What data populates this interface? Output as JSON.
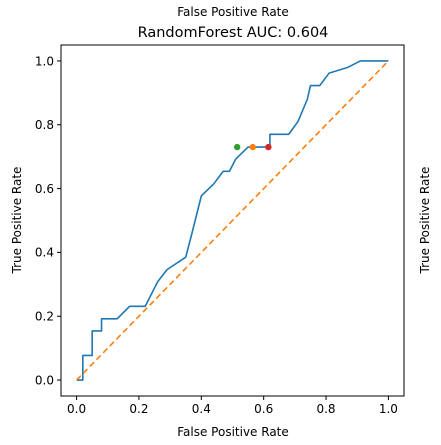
{
  "chart_data": {
    "type": "line",
    "title": "RandomForest AUC: 0.604",
    "top_xlabel": "False Positive Rate",
    "xlabel": "False Positive Rate",
    "ylabel": "True Positive Rate",
    "right_ylabel": "True Positive Rate",
    "xlim": [
      -0.05,
      1.05
    ],
    "ylim": [
      -0.05,
      1.05
    ],
    "x_ticks": [
      0.0,
      0.2,
      0.4,
      0.6,
      0.8,
      1.0
    ],
    "y_ticks": [
      0.0,
      0.2,
      0.4,
      0.6,
      0.8,
      1.0
    ],
    "tick_labels": [
      "0.0",
      "0.2",
      "0.4",
      "0.6",
      "0.8",
      "1.0"
    ],
    "grid": false,
    "series": [
      {
        "color": "#1f77b4",
        "style": "solid",
        "x": [
          0.0,
          0.02,
          0.02,
          0.05,
          0.05,
          0.08,
          0.08,
          0.13,
          0.17,
          0.22,
          0.26,
          0.29,
          0.35,
          0.37,
          0.4,
          0.44,
          0.47,
          0.49,
          0.51,
          0.55,
          0.62,
          0.62,
          0.68,
          0.71,
          0.74,
          0.75,
          0.78,
          0.81,
          0.87,
          0.91,
          0.94,
          1.0
        ],
        "y": [
          0.0,
          0.0,
          0.077,
          0.077,
          0.154,
          0.154,
          0.192,
          0.192,
          0.231,
          0.231,
          0.308,
          0.346,
          0.385,
          0.46,
          0.577,
          0.615,
          0.654,
          0.654,
          0.692,
          0.73,
          0.73,
          0.77,
          0.77,
          0.81,
          0.88,
          0.923,
          0.923,
          0.962,
          0.98,
          1.0,
          1.0,
          1.0
        ]
      },
      {
        "color": "#ff7f0e",
        "style": "dashed",
        "x": [
          0.0,
          1.0
        ],
        "y": [
          0.0,
          1.0
        ]
      }
    ],
    "points": [
      {
        "x": 0.515,
        "y": 0.73,
        "color": "#2ca02c"
      },
      {
        "x": 0.565,
        "y": 0.73,
        "color": "#ff7f0e"
      },
      {
        "x": 0.615,
        "y": 0.73,
        "color": "#d62728"
      }
    ]
  }
}
